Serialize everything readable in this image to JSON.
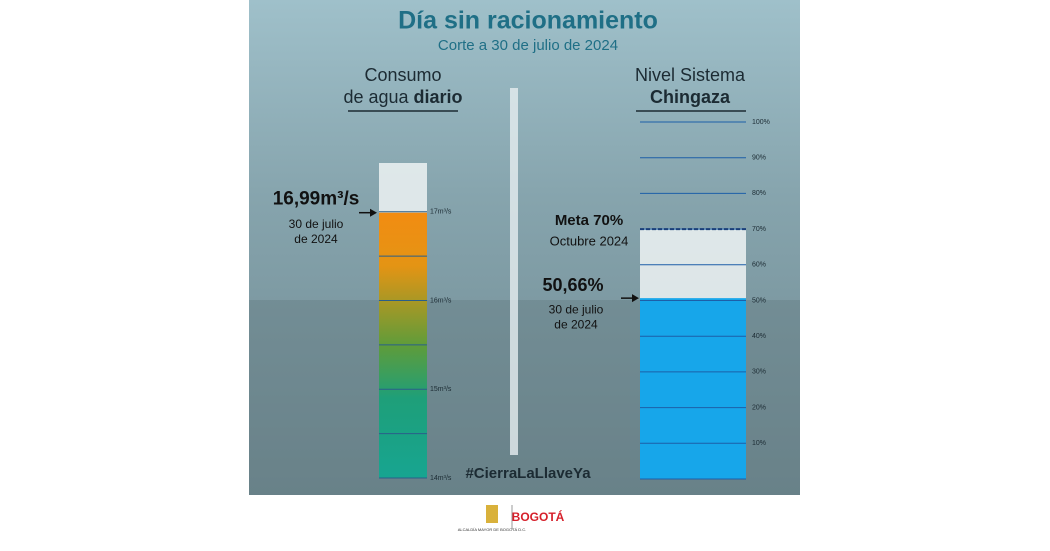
{
  "title": "Día sin racionamiento",
  "subtitle": "Corte a 30 de julio de 2024",
  "consumption": {
    "heading": [
      "Consumo",
      "de agua",
      "diario"
    ],
    "value": 16.99,
    "value_label": "16,99m³/s",
    "date": [
      "30 de julio",
      "de 2024"
    ],
    "ylim": [
      14,
      17.55
    ],
    "yticks": [
      {
        "value": 17,
        "label": "17m³/s"
      },
      {
        "value": 16,
        "label": "16m³/s"
      },
      {
        "value": 15,
        "label": "15m³/s"
      },
      {
        "value": 14,
        "label": "14m³/s"
      }
    ],
    "minor_ticks": [
      16.5,
      15.5,
      14.5
    ]
  },
  "reservoir": {
    "heading": [
      "Nivel Sistema",
      "Chingaza"
    ],
    "value": 50.66,
    "value_label": "50,66%",
    "date": [
      "30 de julio",
      "de 2024"
    ],
    "goal": 70,
    "goal_label": "Meta 70%",
    "goal_date": "Octubre 2024",
    "ylim": [
      0,
      100
    ],
    "yticks": [
      {
        "value": 100,
        "label": "100%"
      },
      {
        "value": 90,
        "label": "90%"
      },
      {
        "value": 80,
        "label": "80%"
      },
      {
        "value": 70,
        "label": "70%"
      },
      {
        "value": 60,
        "label": "60%"
      },
      {
        "value": 50,
        "label": "50%"
      },
      {
        "value": 40,
        "label": "40%"
      },
      {
        "value": 30,
        "label": "30%"
      },
      {
        "value": 20,
        "label": "20%"
      },
      {
        "value": 10,
        "label": "10%"
      }
    ]
  },
  "hashtag": "#CierraLaLlaveYa",
  "footer": {
    "left": "ALCALDÍA MAYOR DE BOGOTÁ D.C.",
    "right": "BOGOTÁ"
  }
}
